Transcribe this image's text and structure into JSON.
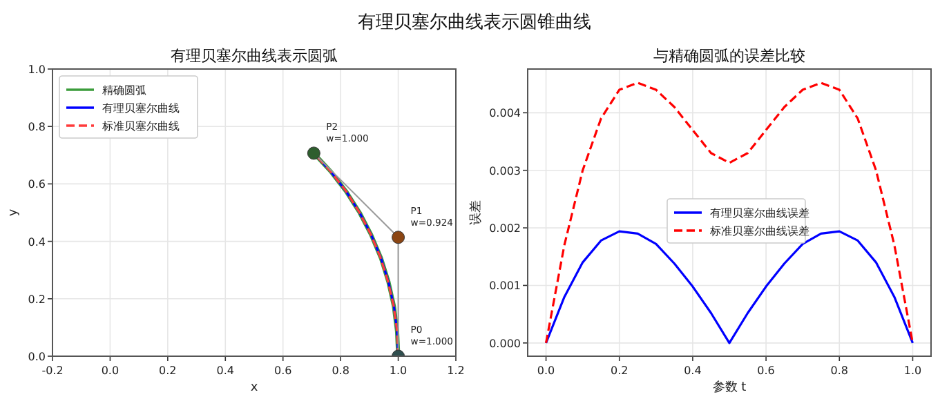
{
  "chart_data": [
    {
      "type": "line",
      "title": "有理贝塞尔曲线表示圆弧",
      "xlabel": "x",
      "ylabel": "y",
      "xlim": [
        -0.2,
        1.2
      ],
      "ylim": [
        0,
        1
      ],
      "xticks": [
        {
          "value": -0.2,
          "label": "-0.2"
        },
        {
          "value": 0,
          "label": "0.0"
        },
        {
          "value": 0.2,
          "label": "0.2"
        },
        {
          "value": 0.4,
          "label": "0.4"
        },
        {
          "value": 0.6,
          "label": "0.6"
        },
        {
          "value": 0.8,
          "label": "0.8"
        },
        {
          "value": 1,
          "label": "1.0"
        },
        {
          "value": 1.2,
          "label": "1.2"
        }
      ],
      "yticks": [
        {
          "value": 0,
          "label": "0.0"
        },
        {
          "value": 0.2,
          "label": "0.2"
        },
        {
          "value": 0.4,
          "label": "0.4"
        },
        {
          "value": 0.6,
          "label": "0.6"
        },
        {
          "value": 0.8,
          "label": "0.8"
        },
        {
          "value": 1,
          "label": "1.0"
        }
      ],
      "grid": true,
      "legend": "top left",
      "series": [
        {
          "name": "精确圆弧",
          "color": "#3c9d3c",
          "line_style": "solid",
          "x": [
            1.0,
            0.996,
            0.985,
            0.966,
            0.94,
            0.906,
            0.866,
            0.819,
            0.766,
            0.707
          ],
          "values": [
            0.0,
            0.087,
            0.174,
            0.259,
            0.342,
            0.423,
            0.5,
            0.574,
            0.643,
            0.707
          ]
        },
        {
          "name": "有理贝塞尔曲线",
          "color": "#0000ff",
          "line_style": "solid",
          "x": [
            1.0,
            0.996,
            0.985,
            0.966,
            0.94,
            0.906,
            0.866,
            0.819,
            0.766,
            0.707
          ],
          "values": [
            0.0,
            0.087,
            0.174,
            0.259,
            0.342,
            0.423,
            0.5,
            0.574,
            0.643,
            0.707
          ]
        },
        {
          "name": "标准贝塞尔曲线",
          "color": "#ff3b3b",
          "line_style": "dashed",
          "x": [
            1.0,
            0.996,
            0.984,
            0.964,
            0.938,
            0.904,
            0.864,
            0.818,
            0.765,
            0.707
          ],
          "values": [
            0.0,
            0.088,
            0.176,
            0.262,
            0.345,
            0.426,
            0.503,
            0.576,
            0.644,
            0.707
          ]
        },
        {
          "type": "line",
          "color": "#999999",
          "line_style": "solid",
          "x": [
            1.0,
            1.0,
            0.707
          ],
          "values": [
            0.0,
            0.414,
            0.707
          ]
        },
        {
          "type": "scatter",
          "marker": "circle",
          "colors": [
            "#2f4f4f",
            "#8b4513",
            "#2e5e2e"
          ],
          "x": [
            1.0,
            1.0,
            0.707
          ],
          "values": [
            0.0,
            0.414,
            0.707
          ]
        }
      ],
      "annotations": [
        "有理贝塞尔曲线表示圆锥曲线",
        "P0\nw=1.000",
        "P1\nw=0.924",
        "P2\nw=1.000"
      ]
    },
    {
      "type": "line",
      "title": "与精确圆弧的误差比较",
      "xlabel": "参数 t",
      "ylabel": "误差",
      "xlim": [
        -0.05,
        1.05
      ],
      "ylim": [
        -0.00023,
        0.00476
      ],
      "xticks": [
        {
          "value": 0,
          "label": "0.0"
        },
        {
          "value": 0.2,
          "label": "0.2"
        },
        {
          "value": 0.4,
          "label": "0.4"
        },
        {
          "value": 0.6,
          "label": "0.6"
        },
        {
          "value": 0.8,
          "label": "0.8"
        },
        {
          "value": 1,
          "label": "1.0"
        }
      ],
      "yticks": [
        {
          "value": 0,
          "label": "0.000"
        },
        0.001,
        0.002,
        0.003,
        0.004
      ],
      "grid": true,
      "legend": "center",
      "series": [
        {
          "name": "有理贝塞尔曲线误差",
          "color": "#0000ff",
          "line_style": "solid",
          "x": [
            0,
            0.05,
            0.1,
            0.15,
            0.2,
            0.25,
            0.3,
            0.35,
            0.4,
            0.45,
            0.5,
            0.55,
            0.6,
            0.65,
            0.7,
            0.75,
            0.8,
            0.85,
            0.9,
            0.95,
            1
          ],
          "values": [
            0,
            0.0008,
            0.0014,
            0.00178,
            0.00194,
            0.0019,
            0.00172,
            0.00138,
            0.00098,
            0.00052,
            0,
            0.00052,
            0.00098,
            0.00138,
            0.00172,
            0.0019,
            0.00194,
            0.00178,
            0.0014,
            0.0008,
            0
          ]
        },
        {
          "name": "标准贝塞尔曲线误差",
          "color": "#ff0000",
          "line_style": "dashed",
          "x": [
            0,
            0.05,
            0.1,
            0.15,
            0.2,
            0.25,
            0.3,
            0.35,
            0.4,
            0.45,
            0.5,
            0.55,
            0.6,
            0.65,
            0.7,
            0.75,
            0.8,
            0.85,
            0.9,
            0.95,
            1
          ],
          "values": [
            0,
            0.0017,
            0.003,
            0.0039,
            0.0044,
            0.00452,
            0.0044,
            0.0041,
            0.0037,
            0.0033,
            0.00313,
            0.0033,
            0.0037,
            0.0041,
            0.0044,
            0.00452,
            0.0044,
            0.0039,
            0.003,
            0.0017,
            0
          ]
        }
      ]
    }
  ]
}
